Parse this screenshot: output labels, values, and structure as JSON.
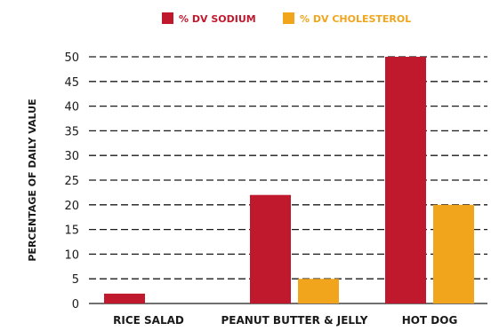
{
  "chart_data": {
    "type": "bar",
    "title": "",
    "xlabel": "",
    "ylabel": "PERCENTAGE OF DAILY VALUE",
    "categories": [
      "RICE SALAD",
      "PEANUT BUTTER & JELLY",
      "HOT DOG"
    ],
    "series": [
      {
        "name": "% DV SODIUM",
        "color": "#c0192d",
        "values": [
          2,
          22,
          50
        ]
      },
      {
        "name": "% DV CHOLESTEROL",
        "color": "#f0a51c",
        "values": [
          0,
          5,
          20
        ]
      }
    ],
    "ylim": [
      0,
      50
    ],
    "yticks": [
      0,
      5,
      10,
      15,
      20,
      25,
      30,
      35,
      40,
      45,
      50
    ],
    "grid": true,
    "grid_style": "dashed",
    "legend_position": "top-center"
  }
}
